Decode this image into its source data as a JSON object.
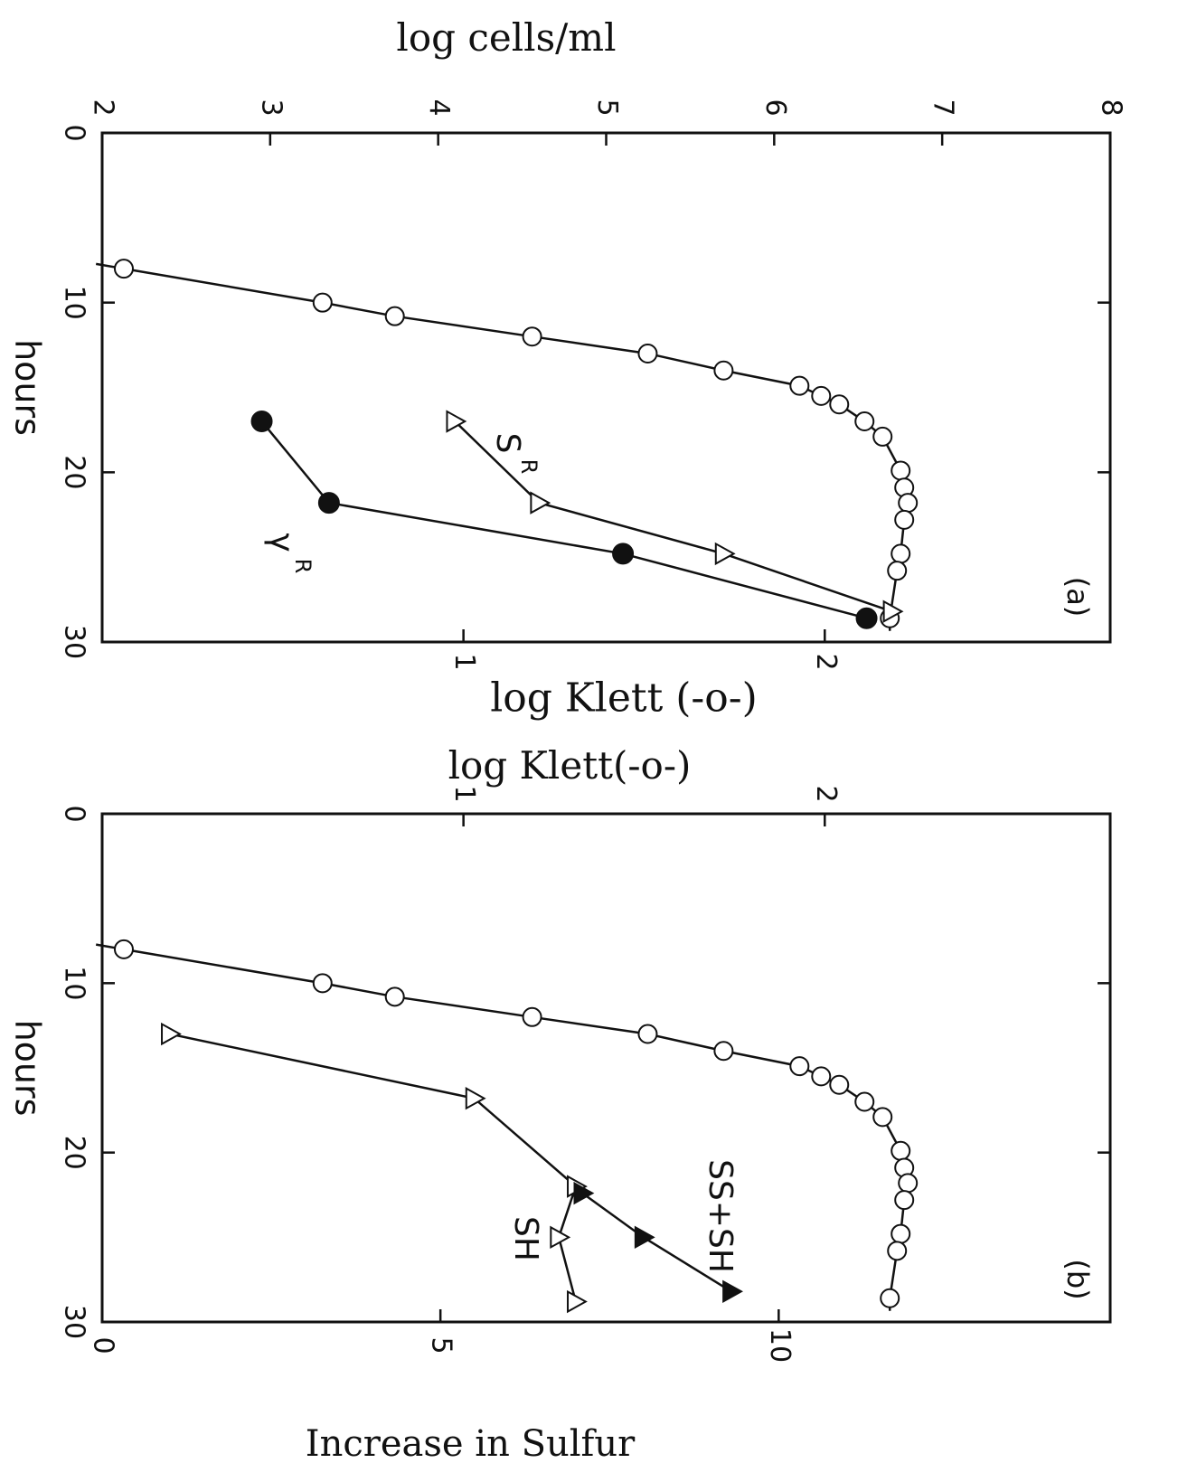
{
  "chart_data": [
    {
      "panel_label": "(a)",
      "type": "line",
      "x_axis": {
        "label": "hours",
        "ticks": [
          "0",
          "10",
          "20",
          "30"
        ],
        "range": [
          0,
          30
        ]
      },
      "y_axis_cells": {
        "label": "log cells/ml",
        "ticks": [
          "2",
          "3",
          "4",
          "5",
          "6",
          "7",
          "8"
        ],
        "range": [
          2,
          8
        ]
      },
      "y_axis_klett": {
        "label": "log Klett (-o-)",
        "ticks": [
          "1",
          "2"
        ],
        "range": [
          0,
          2.79
        ]
      },
      "series": [
        {
          "marker": "open-circle",
          "axis": "klett",
          "points": [
            [
              8,
              0.06
            ],
            [
              10,
              0.61
            ],
            [
              10.8,
              0.81
            ],
            [
              12,
              1.19
            ],
            [
              13,
              1.51
            ],
            [
              14,
              1.72
            ],
            [
              14.9,
              1.93
            ],
            [
              15.5,
              1.99
            ],
            [
              16,
              2.04
            ],
            [
              17,
              2.11
            ],
            [
              17.9,
              2.16
            ],
            [
              19.9,
              2.21
            ],
            [
              20.9,
              2.22
            ],
            [
              21.8,
              2.23
            ],
            [
              22.8,
              2.22
            ],
            [
              24.8,
              2.21
            ],
            [
              25.8,
              2.2
            ],
            [
              28.6,
              2.18
            ]
          ]
        },
        {
          "name": "S",
          "superscript": "R",
          "marker": "open-triangle",
          "axis": "cells",
          "points": [
            [
              17,
              4.1
            ],
            [
              21.8,
              4.6
            ],
            [
              24.8,
              5.7
            ],
            [
              28.2,
              6.7
            ]
          ]
        },
        {
          "name": "γ",
          "superscript": "R",
          "marker": "filled-circle",
          "axis": "cells",
          "points": [
            [
              17,
              2.95
            ],
            [
              21.8,
              3.35
            ],
            [
              24.8,
              5.1
            ],
            [
              28.6,
              6.55
            ]
          ]
        }
      ]
    },
    {
      "panel_label": "(b)",
      "type": "line",
      "x_axis": {
        "label": "hours",
        "ticks": [
          "0",
          "10",
          "20",
          "30"
        ],
        "range": [
          0,
          30
        ]
      },
      "y_axis_klett": {
        "label": "log Klett(-o-)",
        "ticks": [
          "1",
          "2"
        ],
        "range": [
          0,
          2.79
        ]
      },
      "y_axis_sulfur": {
        "label": "Increase in Sulfur",
        "ticks": [
          "0",
          "5",
          "10"
        ],
        "range": [
          0,
          14.9
        ]
      },
      "series": [
        {
          "marker": "open-circle",
          "axis": "klett",
          "points": [
            [
              8,
              0.06
            ],
            [
              10,
              0.61
            ],
            [
              10.8,
              0.81
            ],
            [
              12,
              1.19
            ],
            [
              13,
              1.51
            ],
            [
              14,
              1.72
            ],
            [
              14.9,
              1.93
            ],
            [
              15.5,
              1.99
            ],
            [
              16,
              2.04
            ],
            [
              17,
              2.11
            ],
            [
              17.9,
              2.16
            ],
            [
              19.9,
              2.21
            ],
            [
              20.9,
              2.22
            ],
            [
              21.8,
              2.23
            ],
            [
              22.8,
              2.22
            ],
            [
              24.8,
              2.21
            ],
            [
              25.8,
              2.2
            ],
            [
              28.6,
              2.18
            ]
          ]
        },
        {
          "name": "SH",
          "marker": "open-triangle",
          "axis": "sulfur",
          "points": [
            [
              13,
              1.0
            ],
            [
              16.8,
              5.5
            ],
            [
              22,
              7.0
            ],
            [
              25,
              6.75
            ],
            [
              28.8,
              7.0
            ]
          ]
        },
        {
          "name": "SS+SH",
          "marker": "filled-triangle",
          "axis": "sulfur",
          "points": [
            [
              22.4,
              7.1
            ],
            [
              25,
              8.0
            ],
            [
              28.2,
              9.3
            ]
          ]
        }
      ]
    }
  ]
}
